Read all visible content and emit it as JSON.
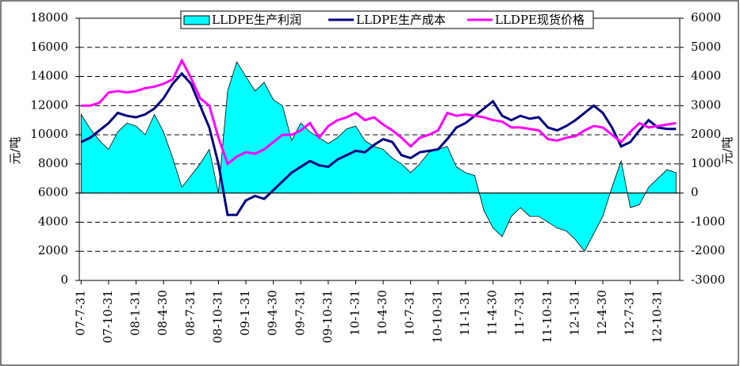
{
  "chart_data": {
    "type": "combo",
    "categories": [
      "07-7-31",
      null,
      null,
      "07-10-31",
      null,
      null,
      "08-1-31",
      null,
      null,
      "08-4-30",
      null,
      null,
      "08-7-31",
      null,
      null,
      "08-10-31",
      null,
      null,
      "09-1-31",
      null,
      null,
      "09-4-30",
      null,
      null,
      "09-7-31",
      null,
      null,
      "09-10-31",
      null,
      null,
      "10-1-31",
      null,
      null,
      "10-4-30",
      null,
      null,
      "10-7-31",
      null,
      null,
      "10-10-31",
      null,
      null,
      "11-1-31",
      null,
      null,
      "11-4-30",
      null,
      null,
      "11-7-31",
      null,
      null,
      "11-10-31",
      null,
      null,
      "12-1-31",
      null,
      null,
      "12-4-30",
      null,
      null,
      "12-7-31",
      null,
      null,
      "12-10-31",
      null,
      null
    ],
    "series": [
      {
        "name": "LLDPE生产利润",
        "type": "area",
        "axis": "y2",
        "color": "#00ffff",
        "values": [
          2700,
          2200,
          1800,
          1500,
          2100,
          2400,
          2300,
          2000,
          2700,
          2100,
          1200,
          200,
          600,
          1000,
          1500,
          0,
          3500,
          4500,
          4000,
          3500,
          3800,
          3200,
          3000,
          1800,
          2400,
          2100,
          1900,
          1700,
          1900,
          2200,
          2300,
          1800,
          1600,
          1500,
          1200,
          1000,
          700,
          1000,
          1400,
          1500,
          1600,
          900,
          700,
          600,
          -600,
          -1200,
          -1500,
          -800,
          -500,
          -800,
          -800,
          -1000,
          -1200,
          -1300,
          -1600,
          -2000,
          -1400,
          -800,
          200,
          1100,
          -500,
          -400,
          200,
          500,
          800,
          700
        ]
      },
      {
        "name": "LLDPE生产成本",
        "type": "line",
        "color": "#000080",
        "values": [
          9500,
          9800,
          10300,
          10800,
          11500,
          11300,
          11200,
          11400,
          11800,
          12500,
          13500,
          14200,
          13500,
          12000,
          10500,
          8000,
          4500,
          4500,
          5500,
          5800,
          5600,
          6200,
          6800,
          7400,
          7800,
          8200,
          7900,
          7800,
          8300,
          8600,
          8900,
          8800,
          9300,
          9700,
          9500,
          8600,
          8400,
          8800,
          8900,
          9000,
          9700,
          10500,
          10800,
          11300,
          11800,
          12300,
          11300,
          11000,
          11300,
          11100,
          11200,
          10500,
          10300,
          10600,
          11000,
          11500,
          12000,
          11500,
          10500,
          9200,
          9500,
          10300,
          11000,
          10500,
          10400,
          10400
        ]
      },
      {
        "name": "LLDPE现货价格",
        "type": "line",
        "color": "#ff00ff",
        "values": [
          12000,
          12000,
          12200,
          12900,
          13000,
          12900,
          13000,
          13200,
          13300,
          13500,
          13800,
          15100,
          13900,
          12500,
          12000,
          9800,
          8000,
          8500,
          8800,
          8700,
          9000,
          9500,
          10000,
          10000,
          10300,
          10800,
          9800,
          10600,
          11000,
          11200,
          11500,
          11000,
          11200,
          10700,
          10300,
          9800,
          9200,
          9800,
          10000,
          10300,
          11500,
          11300,
          11400,
          11300,
          11200,
          11000,
          10900,
          10500,
          10500,
          10400,
          10300,
          9700,
          9600,
          9800,
          9900,
          10300,
          10600,
          10500,
          10000,
          9500,
          10200,
          10800,
          10500,
          10600,
          10700,
          10800
        ]
      }
    ],
    "ylabel": "元/吨",
    "y2label": "元/吨",
    "ylim": [
      0,
      18000
    ],
    "yticks": [
      0,
      2000,
      4000,
      6000,
      8000,
      10000,
      12000,
      14000,
      16000,
      18000
    ],
    "y2lim": [
      -3000,
      6000
    ],
    "y2ticks": [
      -3000,
      -2000,
      -1000,
      0,
      1000,
      2000,
      3000,
      4000,
      5000,
      6000
    ],
    "grid": true,
    "legend": "top"
  }
}
